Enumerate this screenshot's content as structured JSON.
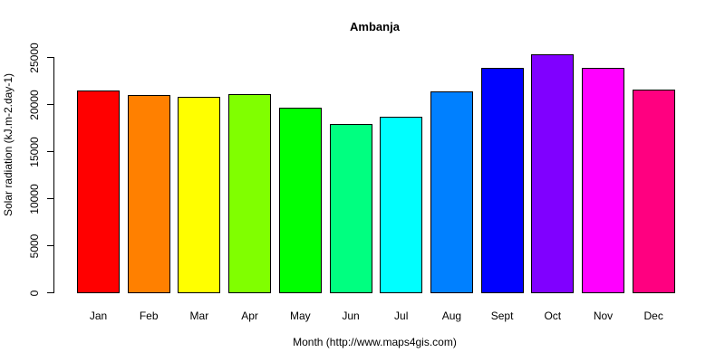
{
  "chart_data": {
    "type": "bar",
    "title": "Ambanja",
    "xlabel": "Month (http://www.maps4gis.com)",
    "ylabel": "Solar radiation (kJ.m-2.day-1)",
    "categories": [
      "Jan",
      "Feb",
      "Mar",
      "Apr",
      "May",
      "Jun",
      "Jul",
      "Aug",
      "Sept",
      "Oct",
      "Nov",
      "Dec"
    ],
    "values": [
      21470,
      20990,
      20800,
      21150,
      19620,
      17980,
      18750,
      21440,
      23880,
      25380,
      23940,
      21540
    ],
    "colors": [
      "#FF0000",
      "#FF8000",
      "#FFFF00",
      "#80FF00",
      "#00FF00",
      "#00FF80",
      "#00FFFF",
      "#0080FF",
      "#0000FF",
      "#8000FF",
      "#FF00FF",
      "#FF0080"
    ],
    "ylim": [
      0,
      25000
    ],
    "yticks": [
      0,
      5000,
      10000,
      15000,
      20000,
      25000
    ],
    "grid": false,
    "legend": null
  }
}
